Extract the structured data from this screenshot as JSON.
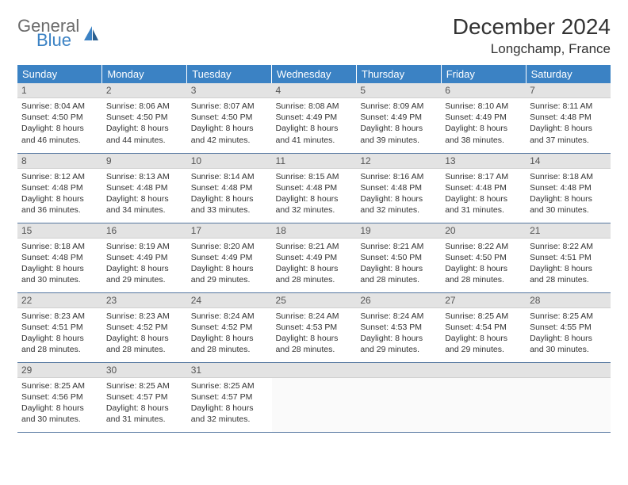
{
  "logo": {
    "general": "General",
    "blue": "Blue"
  },
  "title": "December 2024",
  "location": "Longchamp, France",
  "colors": {
    "header_bg": "#3b82c4",
    "header_text": "#ffffff",
    "daynum_bg": "#e3e3e3",
    "cell_border": "#5577a0",
    "text": "#333333",
    "logo_gray": "#6b6b6b",
    "logo_blue": "#3b82c4"
  },
  "day_headers": [
    "Sunday",
    "Monday",
    "Tuesday",
    "Wednesday",
    "Thursday",
    "Friday",
    "Saturday"
  ],
  "weeks": [
    [
      {
        "n": "1",
        "sunrise": "8:04 AM",
        "sunset": "4:50 PM",
        "daylight": "8 hours and 46 minutes."
      },
      {
        "n": "2",
        "sunrise": "8:06 AM",
        "sunset": "4:50 PM",
        "daylight": "8 hours and 44 minutes."
      },
      {
        "n": "3",
        "sunrise": "8:07 AM",
        "sunset": "4:50 PM",
        "daylight": "8 hours and 42 minutes."
      },
      {
        "n": "4",
        "sunrise": "8:08 AM",
        "sunset": "4:49 PM",
        "daylight": "8 hours and 41 minutes."
      },
      {
        "n": "5",
        "sunrise": "8:09 AM",
        "sunset": "4:49 PM",
        "daylight": "8 hours and 39 minutes."
      },
      {
        "n": "6",
        "sunrise": "8:10 AM",
        "sunset": "4:49 PM",
        "daylight": "8 hours and 38 minutes."
      },
      {
        "n": "7",
        "sunrise": "8:11 AM",
        "sunset": "4:48 PM",
        "daylight": "8 hours and 37 minutes."
      }
    ],
    [
      {
        "n": "8",
        "sunrise": "8:12 AM",
        "sunset": "4:48 PM",
        "daylight": "8 hours and 36 minutes."
      },
      {
        "n": "9",
        "sunrise": "8:13 AM",
        "sunset": "4:48 PM",
        "daylight": "8 hours and 34 minutes."
      },
      {
        "n": "10",
        "sunrise": "8:14 AM",
        "sunset": "4:48 PM",
        "daylight": "8 hours and 33 minutes."
      },
      {
        "n": "11",
        "sunrise": "8:15 AM",
        "sunset": "4:48 PM",
        "daylight": "8 hours and 32 minutes."
      },
      {
        "n": "12",
        "sunrise": "8:16 AM",
        "sunset": "4:48 PM",
        "daylight": "8 hours and 32 minutes."
      },
      {
        "n": "13",
        "sunrise": "8:17 AM",
        "sunset": "4:48 PM",
        "daylight": "8 hours and 31 minutes."
      },
      {
        "n": "14",
        "sunrise": "8:18 AM",
        "sunset": "4:48 PM",
        "daylight": "8 hours and 30 minutes."
      }
    ],
    [
      {
        "n": "15",
        "sunrise": "8:18 AM",
        "sunset": "4:48 PM",
        "daylight": "8 hours and 30 minutes."
      },
      {
        "n": "16",
        "sunrise": "8:19 AM",
        "sunset": "4:49 PM",
        "daylight": "8 hours and 29 minutes."
      },
      {
        "n": "17",
        "sunrise": "8:20 AM",
        "sunset": "4:49 PM",
        "daylight": "8 hours and 29 minutes."
      },
      {
        "n": "18",
        "sunrise": "8:21 AM",
        "sunset": "4:49 PM",
        "daylight": "8 hours and 28 minutes."
      },
      {
        "n": "19",
        "sunrise": "8:21 AM",
        "sunset": "4:50 PM",
        "daylight": "8 hours and 28 minutes."
      },
      {
        "n": "20",
        "sunrise": "8:22 AM",
        "sunset": "4:50 PM",
        "daylight": "8 hours and 28 minutes."
      },
      {
        "n": "21",
        "sunrise": "8:22 AM",
        "sunset": "4:51 PM",
        "daylight": "8 hours and 28 minutes."
      }
    ],
    [
      {
        "n": "22",
        "sunrise": "8:23 AM",
        "sunset": "4:51 PM",
        "daylight": "8 hours and 28 minutes."
      },
      {
        "n": "23",
        "sunrise": "8:23 AM",
        "sunset": "4:52 PM",
        "daylight": "8 hours and 28 minutes."
      },
      {
        "n": "24",
        "sunrise": "8:24 AM",
        "sunset": "4:52 PM",
        "daylight": "8 hours and 28 minutes."
      },
      {
        "n": "25",
        "sunrise": "8:24 AM",
        "sunset": "4:53 PM",
        "daylight": "8 hours and 28 minutes."
      },
      {
        "n": "26",
        "sunrise": "8:24 AM",
        "sunset": "4:53 PM",
        "daylight": "8 hours and 29 minutes."
      },
      {
        "n": "27",
        "sunrise": "8:25 AM",
        "sunset": "4:54 PM",
        "daylight": "8 hours and 29 minutes."
      },
      {
        "n": "28",
        "sunrise": "8:25 AM",
        "sunset": "4:55 PM",
        "daylight": "8 hours and 30 minutes."
      }
    ],
    [
      {
        "n": "29",
        "sunrise": "8:25 AM",
        "sunset": "4:56 PM",
        "daylight": "8 hours and 30 minutes."
      },
      {
        "n": "30",
        "sunrise": "8:25 AM",
        "sunset": "4:57 PM",
        "daylight": "8 hours and 31 minutes."
      },
      {
        "n": "31",
        "sunrise": "8:25 AM",
        "sunset": "4:57 PM",
        "daylight": "8 hours and 32 minutes."
      },
      null,
      null,
      null,
      null
    ]
  ],
  "labels": {
    "sunrise": "Sunrise:",
    "sunset": "Sunset:",
    "daylight": "Daylight:"
  }
}
